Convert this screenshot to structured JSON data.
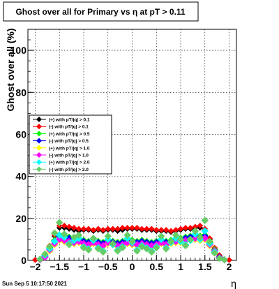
{
  "timestamp": "Sun Sep  5 10:17:50 2021",
  "chart_data": {
    "type": "scatter",
    "title": "Ghost over all for Primary vs   η at pT > 0.11",
    "xlabel": "η",
    "ylabel": "Ghost over all (%)",
    "xlim": [
      -2.0,
      2.0
    ],
    "ylim": [
      0,
      110
    ],
    "x_ticks": [
      "−2",
      "−1.5",
      "−1",
      "−0.5",
      "0",
      "0.5",
      "1",
      "1.5",
      "2"
    ],
    "x_tick_values": [
      -2,
      -1.5,
      -1,
      -0.5,
      0,
      0.5,
      1,
      1.5,
      2
    ],
    "y_ticks": [
      "0",
      "20",
      "40",
      "60",
      "80",
      "100"
    ],
    "y_tick_values": [
      0,
      20,
      40,
      60,
      80,
      100
    ],
    "grid": true,
    "legend_position": "middle-left",
    "series": [
      {
        "name": "(+) with pT/|q| > 0.1",
        "color": "#000000",
        "x": [
          -2.0,
          -1.9,
          -1.8,
          -1.7,
          -1.6,
          -1.5,
          -1.4,
          -1.3,
          -1.2,
          -1.1,
          -1.0,
          -0.9,
          -0.8,
          -0.7,
          -0.6,
          -0.5,
          -0.4,
          -0.3,
          -0.2,
          -0.1,
          0.0,
          0.1,
          0.2,
          0.3,
          0.4,
          0.5,
          0.6,
          0.7,
          0.8,
          0.9,
          1.0,
          1.1,
          1.2,
          1.3,
          1.4,
          1.5,
          1.6,
          1.7,
          1.8,
          1.9,
          2.0
        ],
        "values": [
          0.2,
          0.4,
          2.0,
          6.5,
          11.5,
          15.5,
          15.5,
          15.0,
          14.5,
          14.0,
          14.5,
          14.5,
          14.0,
          14.5,
          14.0,
          14.5,
          14.5,
          14.0,
          14.5,
          15.0,
          15.0,
          15.0,
          14.5,
          14.5,
          14.5,
          14.0,
          14.0,
          14.0,
          13.5,
          14.0,
          14.5,
          15.0,
          15.0,
          15.5,
          15.5,
          14.0,
          10.0,
          5.5,
          2.0,
          0.4,
          0.2
        ]
      },
      {
        "name": "(-) with pT/|q| > 0.1",
        "color": "#ff0000",
        "x": [
          -2.0,
          -1.9,
          -1.8,
          -1.7,
          -1.6,
          -1.5,
          -1.4,
          -1.3,
          -1.2,
          -1.1,
          -1.0,
          -0.9,
          -0.8,
          -0.7,
          -0.6,
          -0.5,
          -0.4,
          -0.3,
          -0.2,
          -0.1,
          0.0,
          0.1,
          0.2,
          0.3,
          0.4,
          0.5,
          0.6,
          0.7,
          0.8,
          0.9,
          1.0,
          1.1,
          1.2,
          1.3,
          1.4,
          1.5,
          1.6,
          1.7,
          1.8,
          1.9,
          2.0
        ],
        "values": [
          0.2,
          0.5,
          2.5,
          7.0,
          12.0,
          16.5,
          16.5,
          16.0,
          15.5,
          15.0,
          15.0,
          15.0,
          14.5,
          15.0,
          14.5,
          15.0,
          15.0,
          15.0,
          15.5,
          15.5,
          15.5,
          15.5,
          15.0,
          15.0,
          15.0,
          14.5,
          14.5,
          14.5,
          14.0,
          14.5,
          15.0,
          15.5,
          15.5,
          16.0,
          16.5,
          15.0,
          10.5,
          6.0,
          2.5,
          0.5,
          0.2
        ]
      },
      {
        "name": "(+) with pT/|q| > 0.5",
        "color": "#00ff00",
        "x": [
          -1.9,
          -1.8,
          -1.7,
          -1.6,
          -1.5,
          -1.4,
          -1.3,
          -1.2,
          -1.1,
          -1.0,
          -0.9,
          -0.8,
          -0.7,
          -0.6,
          -0.5,
          -0.4,
          -0.3,
          -0.2,
          -0.1,
          0.0,
          0.1,
          0.2,
          0.3,
          0.4,
          0.5,
          0.6,
          0.7,
          0.8,
          0.9,
          1.0,
          1.1,
          1.2,
          1.3,
          1.4,
          1.5,
          1.6,
          1.7,
          1.8,
          1.9
        ],
        "values": [
          0.5,
          2.0,
          6.0,
          9.5,
          12.0,
          11.5,
          11.0,
          10.5,
          10.0,
          9.5,
          9.0,
          9.5,
          9.0,
          8.5,
          9.5,
          9.0,
          8.5,
          9.0,
          9.5,
          9.5,
          9.0,
          9.5,
          9.0,
          8.5,
          9.0,
          9.5,
          9.0,
          9.5,
          10.0,
          10.5,
          11.0,
          11.5,
          12.0,
          11.5,
          12.0,
          8.5,
          5.0,
          1.5,
          0.3
        ]
      },
      {
        "name": "(-) with pT/|q| > 0.5",
        "color": "#0000ff",
        "x": [
          -1.9,
          -1.8,
          -1.7,
          -1.6,
          -1.5,
          -1.4,
          -1.3,
          -1.2,
          -1.1,
          -1.0,
          -0.9,
          -0.8,
          -0.7,
          -0.6,
          -0.5,
          -0.4,
          -0.3,
          -0.2,
          -0.1,
          0.0,
          0.1,
          0.2,
          0.3,
          0.4,
          0.5,
          0.6,
          0.7,
          0.8,
          0.9,
          1.0,
          1.1,
          1.2,
          1.3,
          1.4,
          1.5,
          1.6,
          1.7,
          1.8,
          1.9
        ],
        "values": [
          0.5,
          2.0,
          5.5,
          9.0,
          11.5,
          11.0,
          10.5,
          10.0,
          9.5,
          9.0,
          8.5,
          9.0,
          8.5,
          8.0,
          9.0,
          8.5,
          8.0,
          8.5,
          9.0,
          9.0,
          8.5,
          9.0,
          8.5,
          8.0,
          8.5,
          9.0,
          8.5,
          9.0,
          9.5,
          10.0,
          10.5,
          11.0,
          11.5,
          11.0,
          11.5,
          8.0,
          4.5,
          1.5,
          0.3
        ]
      },
      {
        "name": "(+) with pT/|q| > 1.0",
        "color": "#ffff00",
        "x": [
          -1.9,
          -1.8,
          -1.7,
          -1.6,
          -1.5,
          -1.4,
          -1.3,
          -1.2,
          -1.1,
          -1.0,
          -0.9,
          -0.8,
          -0.7,
          -0.6,
          -0.5,
          -0.4,
          -0.3,
          -0.2,
          -0.1,
          0.0,
          0.1,
          0.2,
          0.3,
          0.4,
          0.5,
          0.6,
          0.7,
          0.8,
          0.9,
          1.0,
          1.1,
          1.2,
          1.3,
          1.4,
          1.5,
          1.6,
          1.7,
          1.8,
          1.9
        ],
        "values": [
          0.3,
          1.5,
          4.5,
          7.5,
          9.5,
          9.0,
          8.5,
          8.0,
          8.5,
          7.5,
          7.0,
          8.0,
          7.0,
          6.5,
          8.0,
          7.5,
          6.5,
          7.0,
          8.0,
          7.5,
          7.0,
          7.5,
          7.0,
          6.5,
          7.0,
          8.0,
          7.0,
          8.0,
          8.5,
          8.5,
          9.0,
          9.5,
          10.0,
          9.5,
          10.0,
          7.0,
          4.0,
          1.2,
          0.3
        ]
      },
      {
        "name": "(-) with pT/|q| > 1.0",
        "color": "#ff00ff",
        "x": [
          -1.9,
          -1.8,
          -1.7,
          -1.6,
          -1.5,
          -1.4,
          -1.3,
          -1.2,
          -1.1,
          -1.0,
          -0.9,
          -0.8,
          -0.7,
          -0.6,
          -0.5,
          -0.4,
          -0.3,
          -0.2,
          -0.1,
          0.0,
          0.1,
          0.2,
          0.3,
          0.4,
          0.5,
          0.6,
          0.7,
          0.8,
          0.9,
          1.0,
          1.1,
          1.2,
          1.3,
          1.4,
          1.5,
          1.6,
          1.7,
          1.8,
          1.9
        ],
        "values": [
          0.3,
          1.5,
          5.0,
          8.0,
          10.0,
          9.5,
          9.0,
          8.5,
          9.0,
          8.0,
          7.5,
          8.5,
          7.5,
          7.0,
          8.5,
          8.0,
          7.0,
          7.5,
          8.5,
          8.0,
          7.5,
          8.0,
          7.5,
          7.0,
          7.5,
          8.5,
          7.5,
          8.5,
          9.0,
          9.0,
          9.5,
          10.0,
          10.5,
          10.0,
          10.5,
          7.5,
          4.5,
          1.2,
          0.3
        ]
      },
      {
        "name": "(+) with pT/|q| > 2.0",
        "color": "#00ffff",
        "x": [
          -1.9,
          -1.8,
          -1.7,
          -1.6,
          -1.5,
          -1.4,
          -1.3,
          -1.2,
          -1.1,
          -1.0,
          -0.9,
          -0.8,
          -0.7,
          -0.6,
          -0.5,
          -0.4,
          -0.3,
          -0.2,
          -0.1,
          0.0,
          0.1,
          0.2,
          0.3,
          0.4,
          0.5,
          0.6,
          0.7,
          0.8,
          0.9,
          1.0,
          1.1,
          1.2,
          1.3,
          1.4,
          1.5,
          1.6,
          1.7,
          1.8,
          1.9
        ],
        "values": [
          0.5,
          2.5,
          5.5,
          9.0,
          12.0,
          11.0,
          8.0,
          9.5,
          10.5,
          6.5,
          5.5,
          9.5,
          6.0,
          4.5,
          10.0,
          7.5,
          5.0,
          6.5,
          10.5,
          8.5,
          5.0,
          7.0,
          6.0,
          4.5,
          6.5,
          10.0,
          6.0,
          8.5,
          10.5,
          9.0,
          7.5,
          9.5,
          12.5,
          10.0,
          14.0,
          8.0,
          4.0,
          1.0,
          0.3
        ]
      },
      {
        "name": "(-) with pT/|q| > 2.0",
        "color": "#66cc66",
        "x": [
          -1.9,
          -1.8,
          -1.7,
          -1.6,
          -1.5,
          -1.4,
          -1.3,
          -1.2,
          -1.1,
          -1.0,
          -0.9,
          -0.8,
          -0.7,
          -0.6,
          -0.5,
          -0.4,
          -0.3,
          -0.2,
          -0.1,
          0.0,
          0.1,
          0.2,
          0.3,
          0.4,
          0.5,
          0.6,
          0.7,
          0.8,
          0.9,
          1.0,
          1.1,
          1.2,
          1.3,
          1.4,
          1.5,
          1.6,
          1.7,
          1.8,
          1.9
        ],
        "values": [
          0.5,
          3.0,
          6.5,
          13.0,
          18.0,
          12.5,
          7.5,
          11.0,
          12.0,
          6.0,
          5.0,
          10.5,
          5.5,
          4.0,
          11.5,
          8.0,
          4.5,
          6.0,
          12.0,
          9.0,
          4.5,
          6.5,
          5.5,
          4.0,
          6.0,
          11.5,
          5.5,
          9.0,
          12.0,
          10.0,
          7.0,
          10.0,
          14.0,
          11.0,
          19.0,
          9.0,
          3.5,
          1.0,
          0.3
        ]
      }
    ]
  }
}
